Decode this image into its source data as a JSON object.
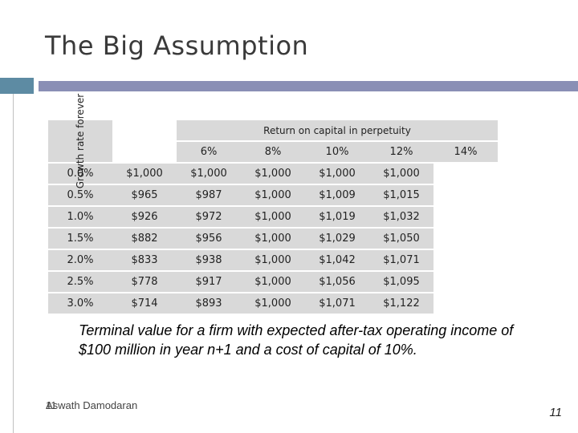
{
  "slide": {
    "title": "The Big Assumption",
    "caption": "Terminal value for a firm with expected after-tax operating income of $100 million in year n+1 and a cost of capital of 10%.",
    "author": "Aswath Damodaran",
    "footer_number": "11",
    "page_number": "11"
  },
  "table": {
    "column_group_header": "Return on capital in perpetuity",
    "row_group_header": "Growth rate forever",
    "columns": [
      "6%",
      "8%",
      "10%",
      "12%",
      "14%"
    ],
    "rows": [
      {
        "rate": "0.0%",
        "values": [
          "$1,000",
          "$1,000",
          "$1,000",
          "$1,000",
          "$1,000"
        ]
      },
      {
        "rate": "0.5%",
        "values": [
          "$965",
          "$987",
          "$1,000",
          "$1,009",
          "$1,015"
        ]
      },
      {
        "rate": "1.0%",
        "values": [
          "$926",
          "$972",
          "$1,000",
          "$1,019",
          "$1,032"
        ]
      },
      {
        "rate": "1.5%",
        "values": [
          "$882",
          "$956",
          "$1,000",
          "$1,029",
          "$1,050"
        ]
      },
      {
        "rate": "2.0%",
        "values": [
          "$833",
          "$938",
          "$1,000",
          "$1,042",
          "$1,071"
        ]
      },
      {
        "rate": "2.5%",
        "values": [
          "$778",
          "$917",
          "$1,000",
          "$1,056",
          "$1,095"
        ]
      },
      {
        "rate": "3.0%",
        "values": [
          "$714",
          "$893",
          "$1,000",
          "$1,071",
          "$1,122"
        ]
      }
    ]
  }
}
